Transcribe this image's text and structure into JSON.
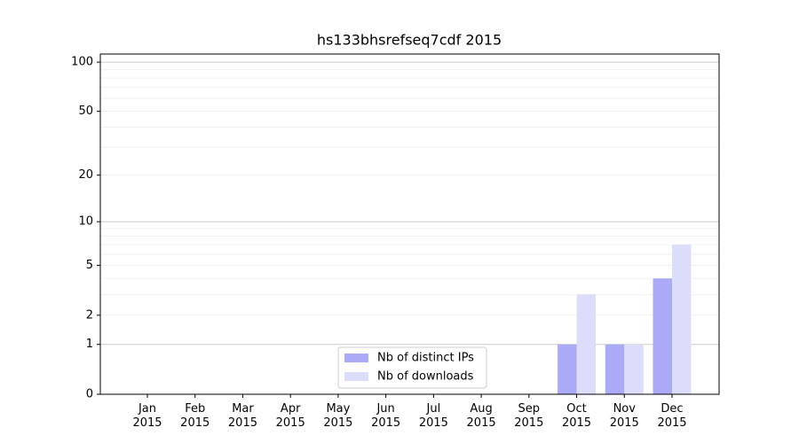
{
  "chart_data": {
    "type": "bar",
    "title": "hs133bhsrefseq7cdf 2015",
    "categories": [
      "Jan 2015",
      "Feb 2015",
      "Mar 2015",
      "Apr 2015",
      "May 2015",
      "Jun 2015",
      "Jul 2015",
      "Aug 2015",
      "Sep 2015",
      "Oct 2015",
      "Nov 2015",
      "Dec 2015"
    ],
    "series": [
      {
        "name": "Nb of distinct IPs",
        "color": "#aaaaf6",
        "values": [
          0,
          0,
          0,
          0,
          0,
          0,
          0,
          0,
          0,
          1,
          1,
          4
        ]
      },
      {
        "name": "Nb of downloads",
        "color": "#dcdcfb",
        "values": [
          0,
          0,
          0,
          0,
          0,
          0,
          0,
          0,
          0,
          3,
          1,
          7
        ]
      }
    ],
    "yscale": "log1p",
    "ylim": [
      0,
      112
    ],
    "yticks": [
      0,
      1,
      2,
      5,
      10,
      20,
      50,
      100
    ],
    "major_grid": [
      1,
      10,
      100
    ],
    "minor_grid": [
      2,
      3,
      4,
      5,
      6,
      7,
      8,
      9,
      20,
      30,
      40,
      50,
      60,
      70,
      80,
      90
    ],
    "legend": "lower center"
  }
}
